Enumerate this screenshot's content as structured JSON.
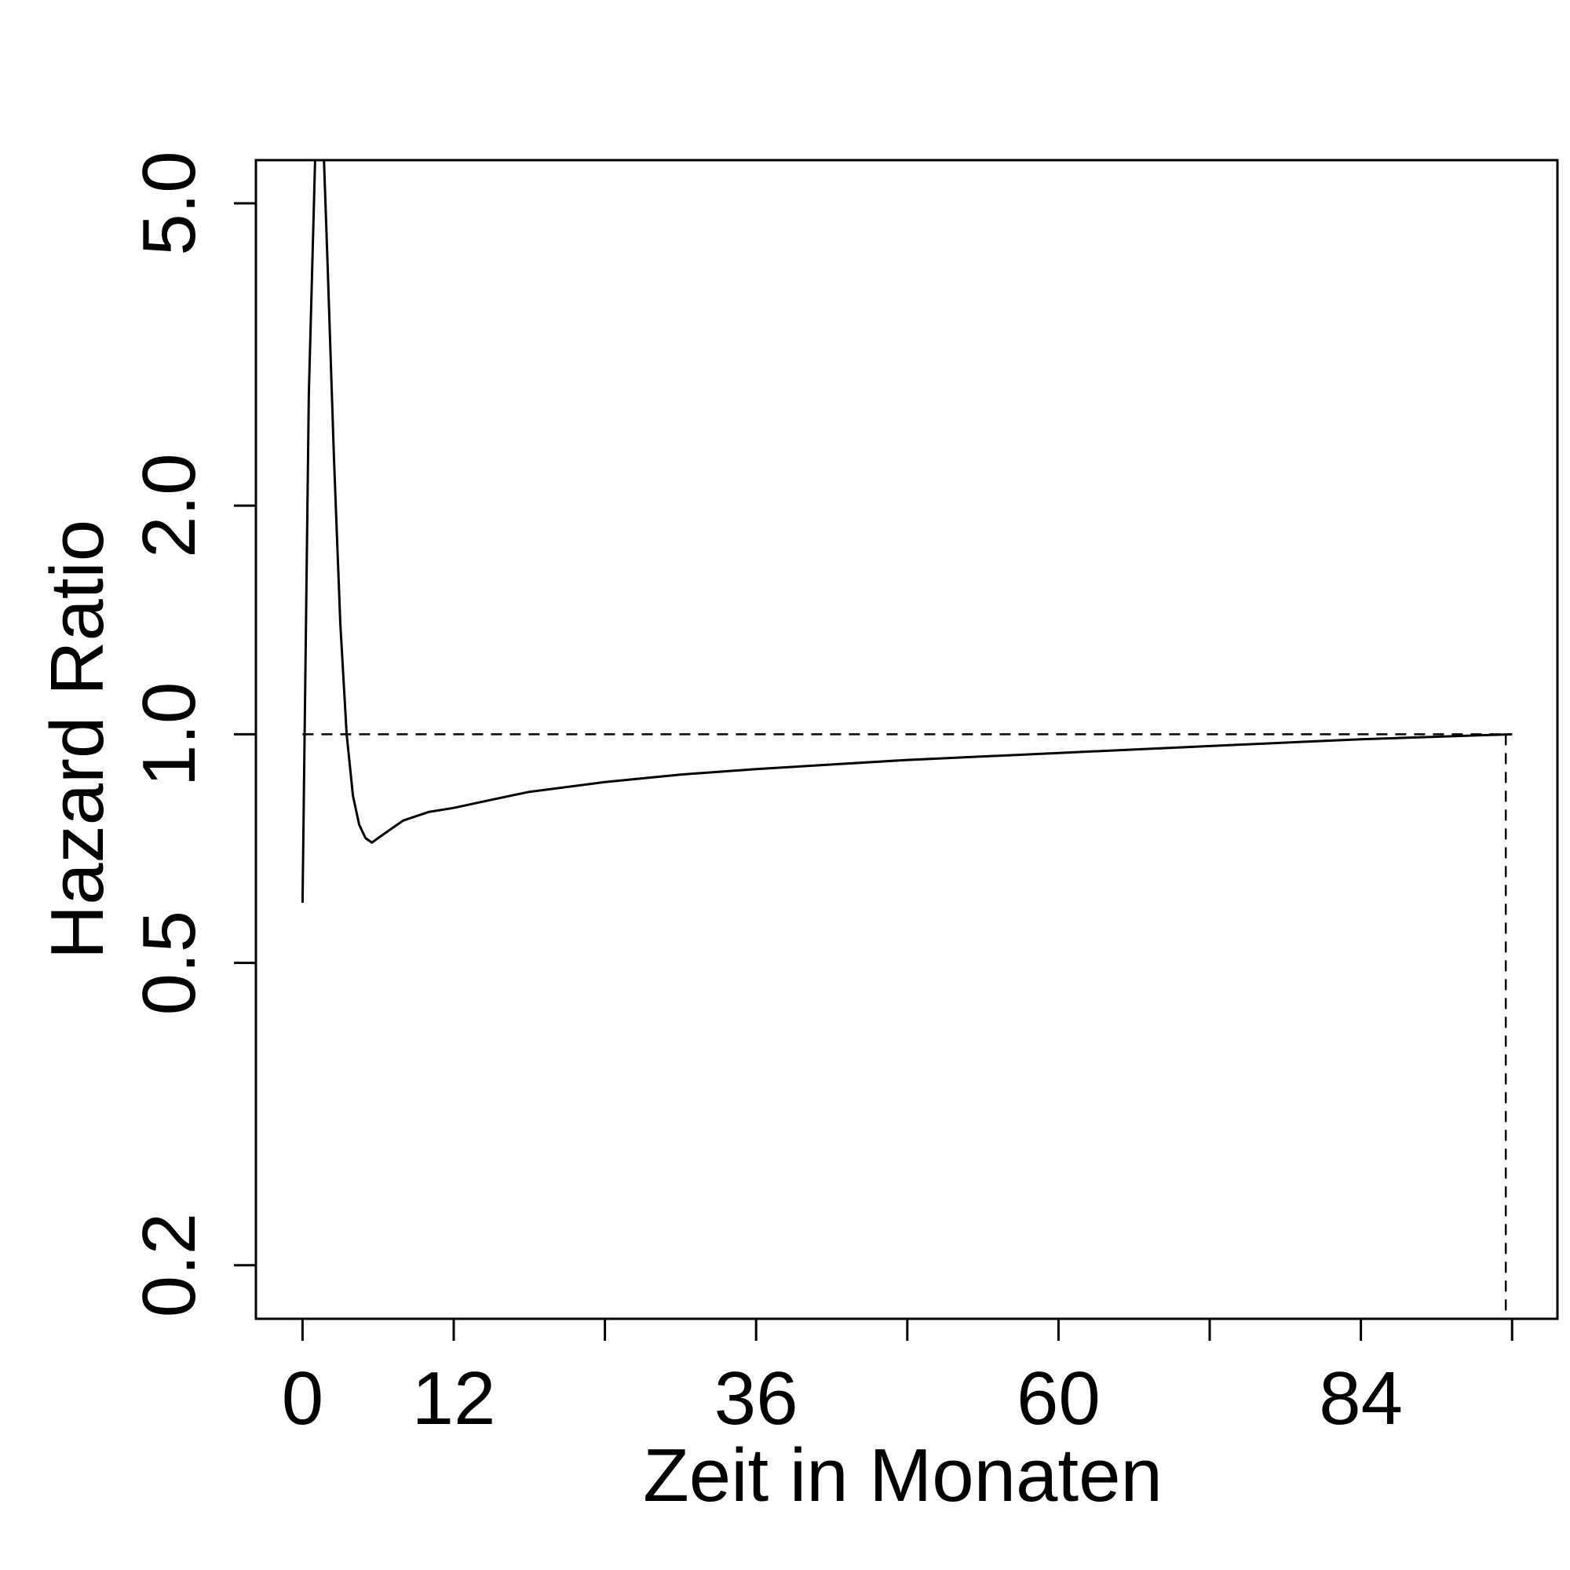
{
  "chart_data": {
    "type": "line",
    "title": "",
    "xlabel": "Zeit in Monaten",
    "ylabel": "Hazard Ratio",
    "x_ticks": [
      0,
      12,
      24,
      36,
      48,
      60,
      72,
      84,
      96
    ],
    "x_tick_labels": [
      "0",
      "12",
      "",
      "36",
      "",
      "60",
      "",
      "84",
      ""
    ],
    "y_scale": "log",
    "y_ticks": [
      0.2,
      0.5,
      1.0,
      2.0,
      5.0
    ],
    "y_tick_labels": [
      "0.2",
      "0.5",
      "1.0",
      "2.0",
      "5.0"
    ],
    "xlim": [
      -3.7,
      99.6
    ],
    "ylim": [
      0.17,
      5.7
    ],
    "grid": false,
    "series": [
      {
        "line_style": "solid",
        "color": "#000000",
        "x": [
          0.0,
          0.5,
          1.0,
          1.3,
          1.7,
          2.0,
          2.5,
          3.0,
          3.5,
          4.0,
          4.5,
          5.0,
          5.5,
          6.0,
          7.0,
          8.0,
          10.0,
          12.0,
          15.0,
          18.0,
          24.0,
          30.0,
          36.0,
          48.0,
          60.0,
          72.0,
          84.0,
          96.0
        ],
        "y": [
          0.6,
          2.8,
          5.7,
          5.7,
          5.7,
          4.1,
          2.3,
          1.4,
          1.0,
          0.83,
          0.76,
          0.73,
          0.72,
          0.73,
          0.75,
          0.77,
          0.79,
          0.8,
          0.82,
          0.84,
          0.865,
          0.885,
          0.9,
          0.925,
          0.945,
          0.965,
          0.985,
          1.0
        ]
      }
    ],
    "reference_lines": [
      {
        "orientation": "horizontal",
        "y": 1.0,
        "x_from": 0,
        "x_to": 96,
        "line_style": "dashed",
        "color": "#000000"
      },
      {
        "orientation": "vertical",
        "x": 95.5,
        "y_from": 0.17,
        "y_to": 1.0,
        "line_style": "dashed",
        "color": "#000000"
      }
    ]
  }
}
